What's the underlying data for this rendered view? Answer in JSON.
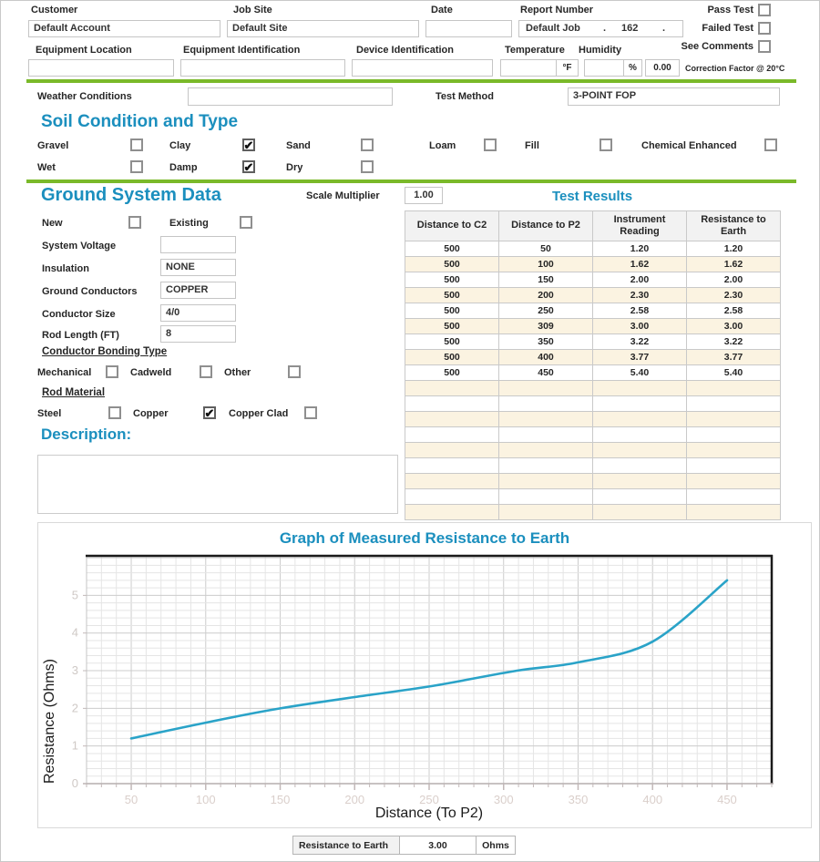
{
  "header": {
    "customer": {
      "label": "Customer",
      "value": "Default Account"
    },
    "job_site": {
      "label": "Job Site",
      "value": "Default Site"
    },
    "date": {
      "label": "Date",
      "value": ""
    },
    "report_number": {
      "label": "Report Number",
      "prefix": "Default Job",
      "sep1": ".",
      "number": "162",
      "sep2": "."
    },
    "equipment_location": {
      "label": "Equipment Location",
      "value": ""
    },
    "equipment_identification": {
      "label": "Equipment Identification",
      "value": ""
    },
    "device_identification": {
      "label": "Device Identification",
      "value": ""
    },
    "temperature": {
      "label": "Temperature",
      "value": "",
      "unit": "°F"
    },
    "humidity": {
      "label": "Humidity",
      "value": "",
      "unit": "%"
    },
    "correction_factor": {
      "value": "0.00",
      "label": "Correction Factor @ 20°C"
    },
    "pass_test": {
      "label": "Pass Test",
      "checked": false
    },
    "failed_test": {
      "label": "Failed Test",
      "checked": false
    },
    "see_comments": {
      "label": "See Comments",
      "checked": false
    }
  },
  "weather": {
    "label": "Weather Conditions",
    "value": ""
  },
  "test_method": {
    "label": "Test Method",
    "value": "3-POINT FOP"
  },
  "soil": {
    "title": "Soil Condition and Type",
    "row1": [
      {
        "label": "Gravel",
        "checked": false
      },
      {
        "label": "Clay",
        "checked": true
      },
      {
        "label": "Sand",
        "checked": false
      },
      {
        "label": "Loam",
        "checked": false
      },
      {
        "label": "Fill",
        "checked": false
      },
      {
        "label": "Chemical Enhanced",
        "checked": false
      }
    ],
    "row2": [
      {
        "label": "Wet",
        "checked": false
      },
      {
        "label": "Damp",
        "checked": true
      },
      {
        "label": "Dry",
        "checked": false
      }
    ]
  },
  "ground_system": {
    "title": "Ground System Data",
    "new": {
      "label": "New",
      "checked": false
    },
    "existing": {
      "label": "Existing",
      "checked": false
    },
    "system_voltage": {
      "label": "System Voltage",
      "value": ""
    },
    "insulation": {
      "label": "Insulation",
      "value": "NONE"
    },
    "ground_conductors": {
      "label": "Ground Conductors",
      "value": "COPPER"
    },
    "conductor_size": {
      "label": "Conductor Size",
      "value": "4/0"
    },
    "rod_length": {
      "label": "Rod Length (FT)",
      "value": "8"
    },
    "bonding": {
      "title": "Conductor Bonding Type",
      "options": [
        {
          "label": "Mechanical",
          "checked": false
        },
        {
          "label": "Cadweld",
          "checked": false
        },
        {
          "label": "Other",
          "checked": false
        }
      ]
    },
    "rod_material": {
      "title": "Rod Material",
      "options": [
        {
          "label": "Steel",
          "checked": false
        },
        {
          "label": "Copper",
          "checked": true
        },
        {
          "label": "Copper Clad",
          "checked": false
        }
      ]
    },
    "description_label": "Description:",
    "description_value": ""
  },
  "scale_multiplier": {
    "label": "Scale Multiplier",
    "value": "1.00"
  },
  "test_results": {
    "title": "Test Results",
    "columns": [
      "Distance to C2",
      "Distance to P2",
      "Instrument Reading",
      "Resistance to Earth"
    ],
    "rows": [
      [
        "500",
        "50",
        "1.20",
        "1.20"
      ],
      [
        "500",
        "100",
        "1.62",
        "1.62"
      ],
      [
        "500",
        "150",
        "2.00",
        "2.00"
      ],
      [
        "500",
        "200",
        "2.30",
        "2.30"
      ],
      [
        "500",
        "250",
        "2.58",
        "2.58"
      ],
      [
        "500",
        "309",
        "3.00",
        "3.00"
      ],
      [
        "500",
        "350",
        "3.22",
        "3.22"
      ],
      [
        "500",
        "400",
        "3.77",
        "3.77"
      ],
      [
        "500",
        "450",
        "5.40",
        "5.40"
      ]
    ],
    "empty_row_count": 9
  },
  "chart_data": {
    "type": "line",
    "title": "Graph of Measured Resistance to Earth",
    "xlabel": "Distance (To P2)",
    "ylabel": "Resistance (Ohms)",
    "x": [
      50,
      100,
      150,
      200,
      250,
      309,
      350,
      400,
      450
    ],
    "y": [
      1.2,
      1.62,
      2.0,
      2.3,
      2.58,
      3.0,
      3.22,
      3.77,
      5.4
    ],
    "xlim": [
      20,
      480
    ],
    "ylim": [
      0,
      6.05
    ],
    "x_ticks": [
      50,
      100,
      150,
      200,
      250,
      300,
      350,
      400,
      450
    ],
    "y_ticks": [
      0,
      1,
      2,
      3,
      4,
      5
    ],
    "x_minor_step": 10,
    "y_minor_step": 0.2,
    "grid": true,
    "legend": "none",
    "line_color": "#2aa3c8"
  },
  "summary": {
    "label": "Resistance to Earth",
    "value": "3.00",
    "unit": "Ohms"
  },
  "colors": {
    "heading_teal": "#1b8fbe",
    "divider_green": "#7ab929",
    "table_header_bg": "#f2f2f2",
    "table_alt_row_bg": "#fbf3e1",
    "chart_line": "#2aa3c8"
  }
}
